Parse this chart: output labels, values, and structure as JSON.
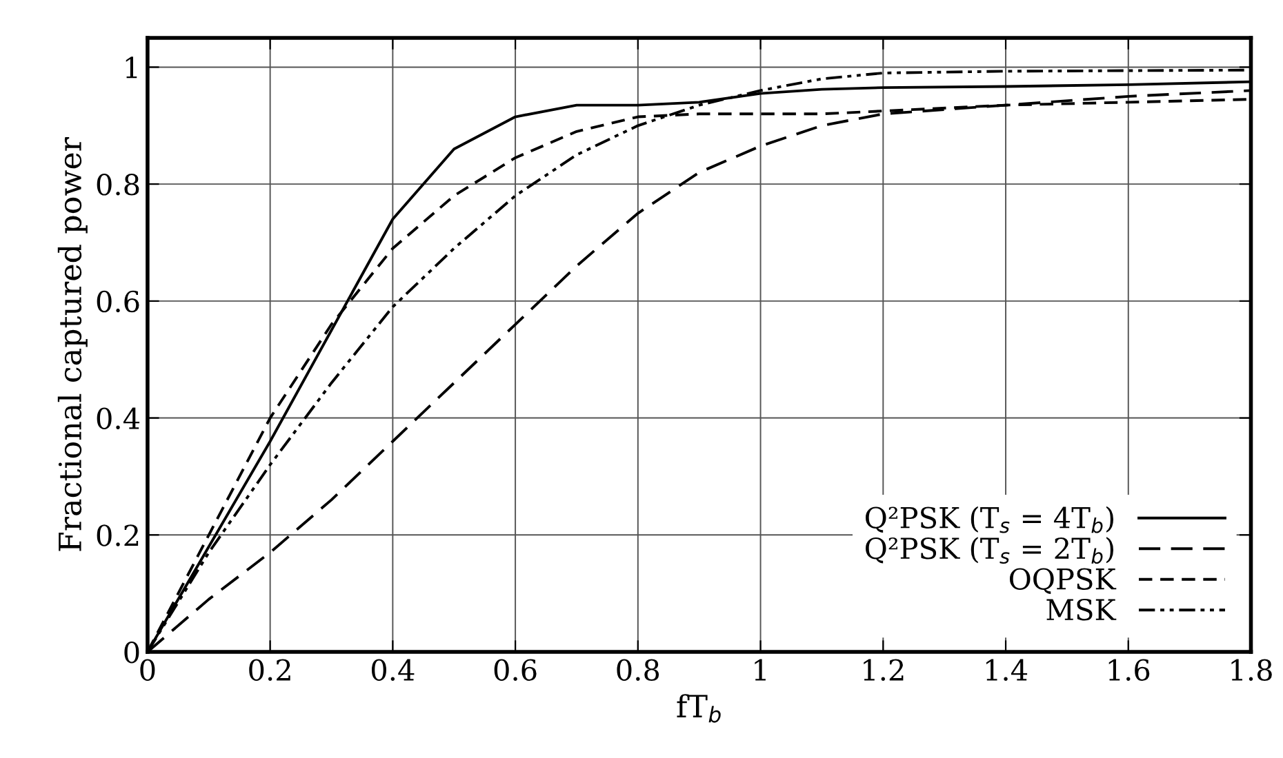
{
  "chart_data": {
    "type": "line",
    "xlabel": "fT$_{b}$",
    "ylabel": "Fractional captured power",
    "x": [
      0,
      0.1,
      0.2,
      0.3,
      0.4,
      0.5,
      0.6,
      0.7,
      0.8,
      0.9,
      1.0,
      1.1,
      1.2,
      1.4,
      1.6,
      1.8
    ],
    "series": [
      {
        "name": "Q²PSK (T$_{s}$ = 4T$_{b}$)",
        "color": "#000000",
        "line_style": "solid",
        "values": [
          0,
          0.18,
          0.36,
          0.55,
          0.74,
          0.86,
          0.915,
          0.935,
          0.935,
          0.94,
          0.955,
          0.962,
          0.965,
          0.967,
          0.97,
          0.975
        ]
      },
      {
        "name": "Q²PSK (T$_{s}$ = 2T$_{b}$)",
        "color": "#000000",
        "line_style": "dashed",
        "values": [
          0,
          0.09,
          0.17,
          0.26,
          0.36,
          0.46,
          0.56,
          0.66,
          0.75,
          0.82,
          0.865,
          0.9,
          0.92,
          0.935,
          0.95,
          0.96
        ]
      },
      {
        "name": "OQPSK",
        "color": "#000000",
        "line_style": "dashed",
        "values": [
          0,
          0.2,
          0.4,
          0.56,
          0.69,
          0.78,
          0.845,
          0.89,
          0.915,
          0.92,
          0.92,
          0.92,
          0.925,
          0.935,
          0.94,
          0.945
        ]
      },
      {
        "name": "MSK",
        "color": "#000000",
        "line_style": "dashed",
        "values": [
          0,
          0.17,
          0.32,
          0.46,
          0.59,
          0.69,
          0.78,
          0.85,
          0.9,
          0.935,
          0.96,
          0.98,
          0.99,
          0.993,
          0.994,
          0.995
        ]
      }
    ],
    "xlim": [
      0,
      1.8
    ],
    "xticks": [
      0,
      0.2,
      0.4,
      0.6,
      0.8,
      1,
      1.2,
      1.4,
      1.6,
      1.8
    ],
    "ylim": [
      0,
      1.05
    ],
    "yticks": [
      0,
      0.2,
      0.4,
      0.6,
      0.8,
      1
    ],
    "grid": true,
    "legend": "bottom right"
  }
}
